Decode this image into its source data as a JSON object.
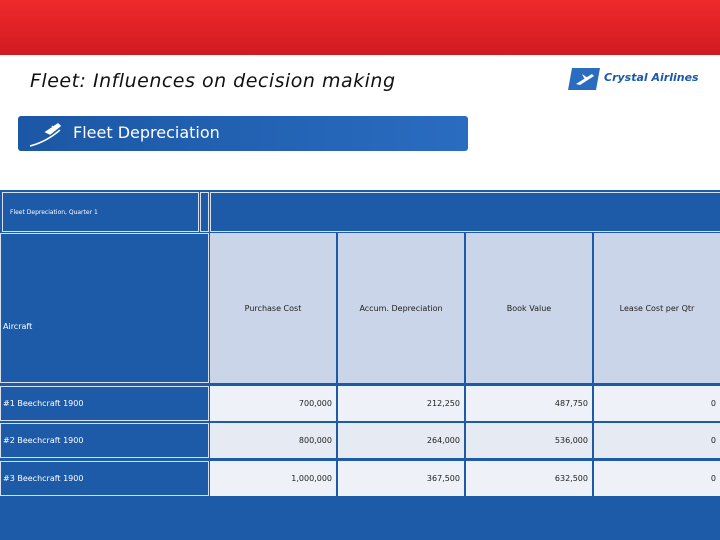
{
  "header": {
    "title": "Fleet: Influences on decision making",
    "brand": "Crystal Airlines"
  },
  "banner": {
    "title": "Fleet Depreciation"
  },
  "table": {
    "title": "Fleet Depreciation, Quarter 1",
    "row_header": "Aircraft",
    "columns": [
      "Purchase Cost",
      "Accum. Depreciation",
      "Book Value",
      "Lease Cost per Qtr"
    ],
    "rows": [
      [
        "#1 Beechcraft 1900",
        "700,000",
        "212,250",
        "487,750",
        "0"
      ],
      [
        "#2 Beechcraft 1900",
        "800,000",
        "264,000",
        "536,000",
        "0"
      ],
      [
        "#3 Beechcraft 1900",
        "1,000,000",
        "367,500",
        "632,500",
        "0"
      ]
    ]
  }
}
